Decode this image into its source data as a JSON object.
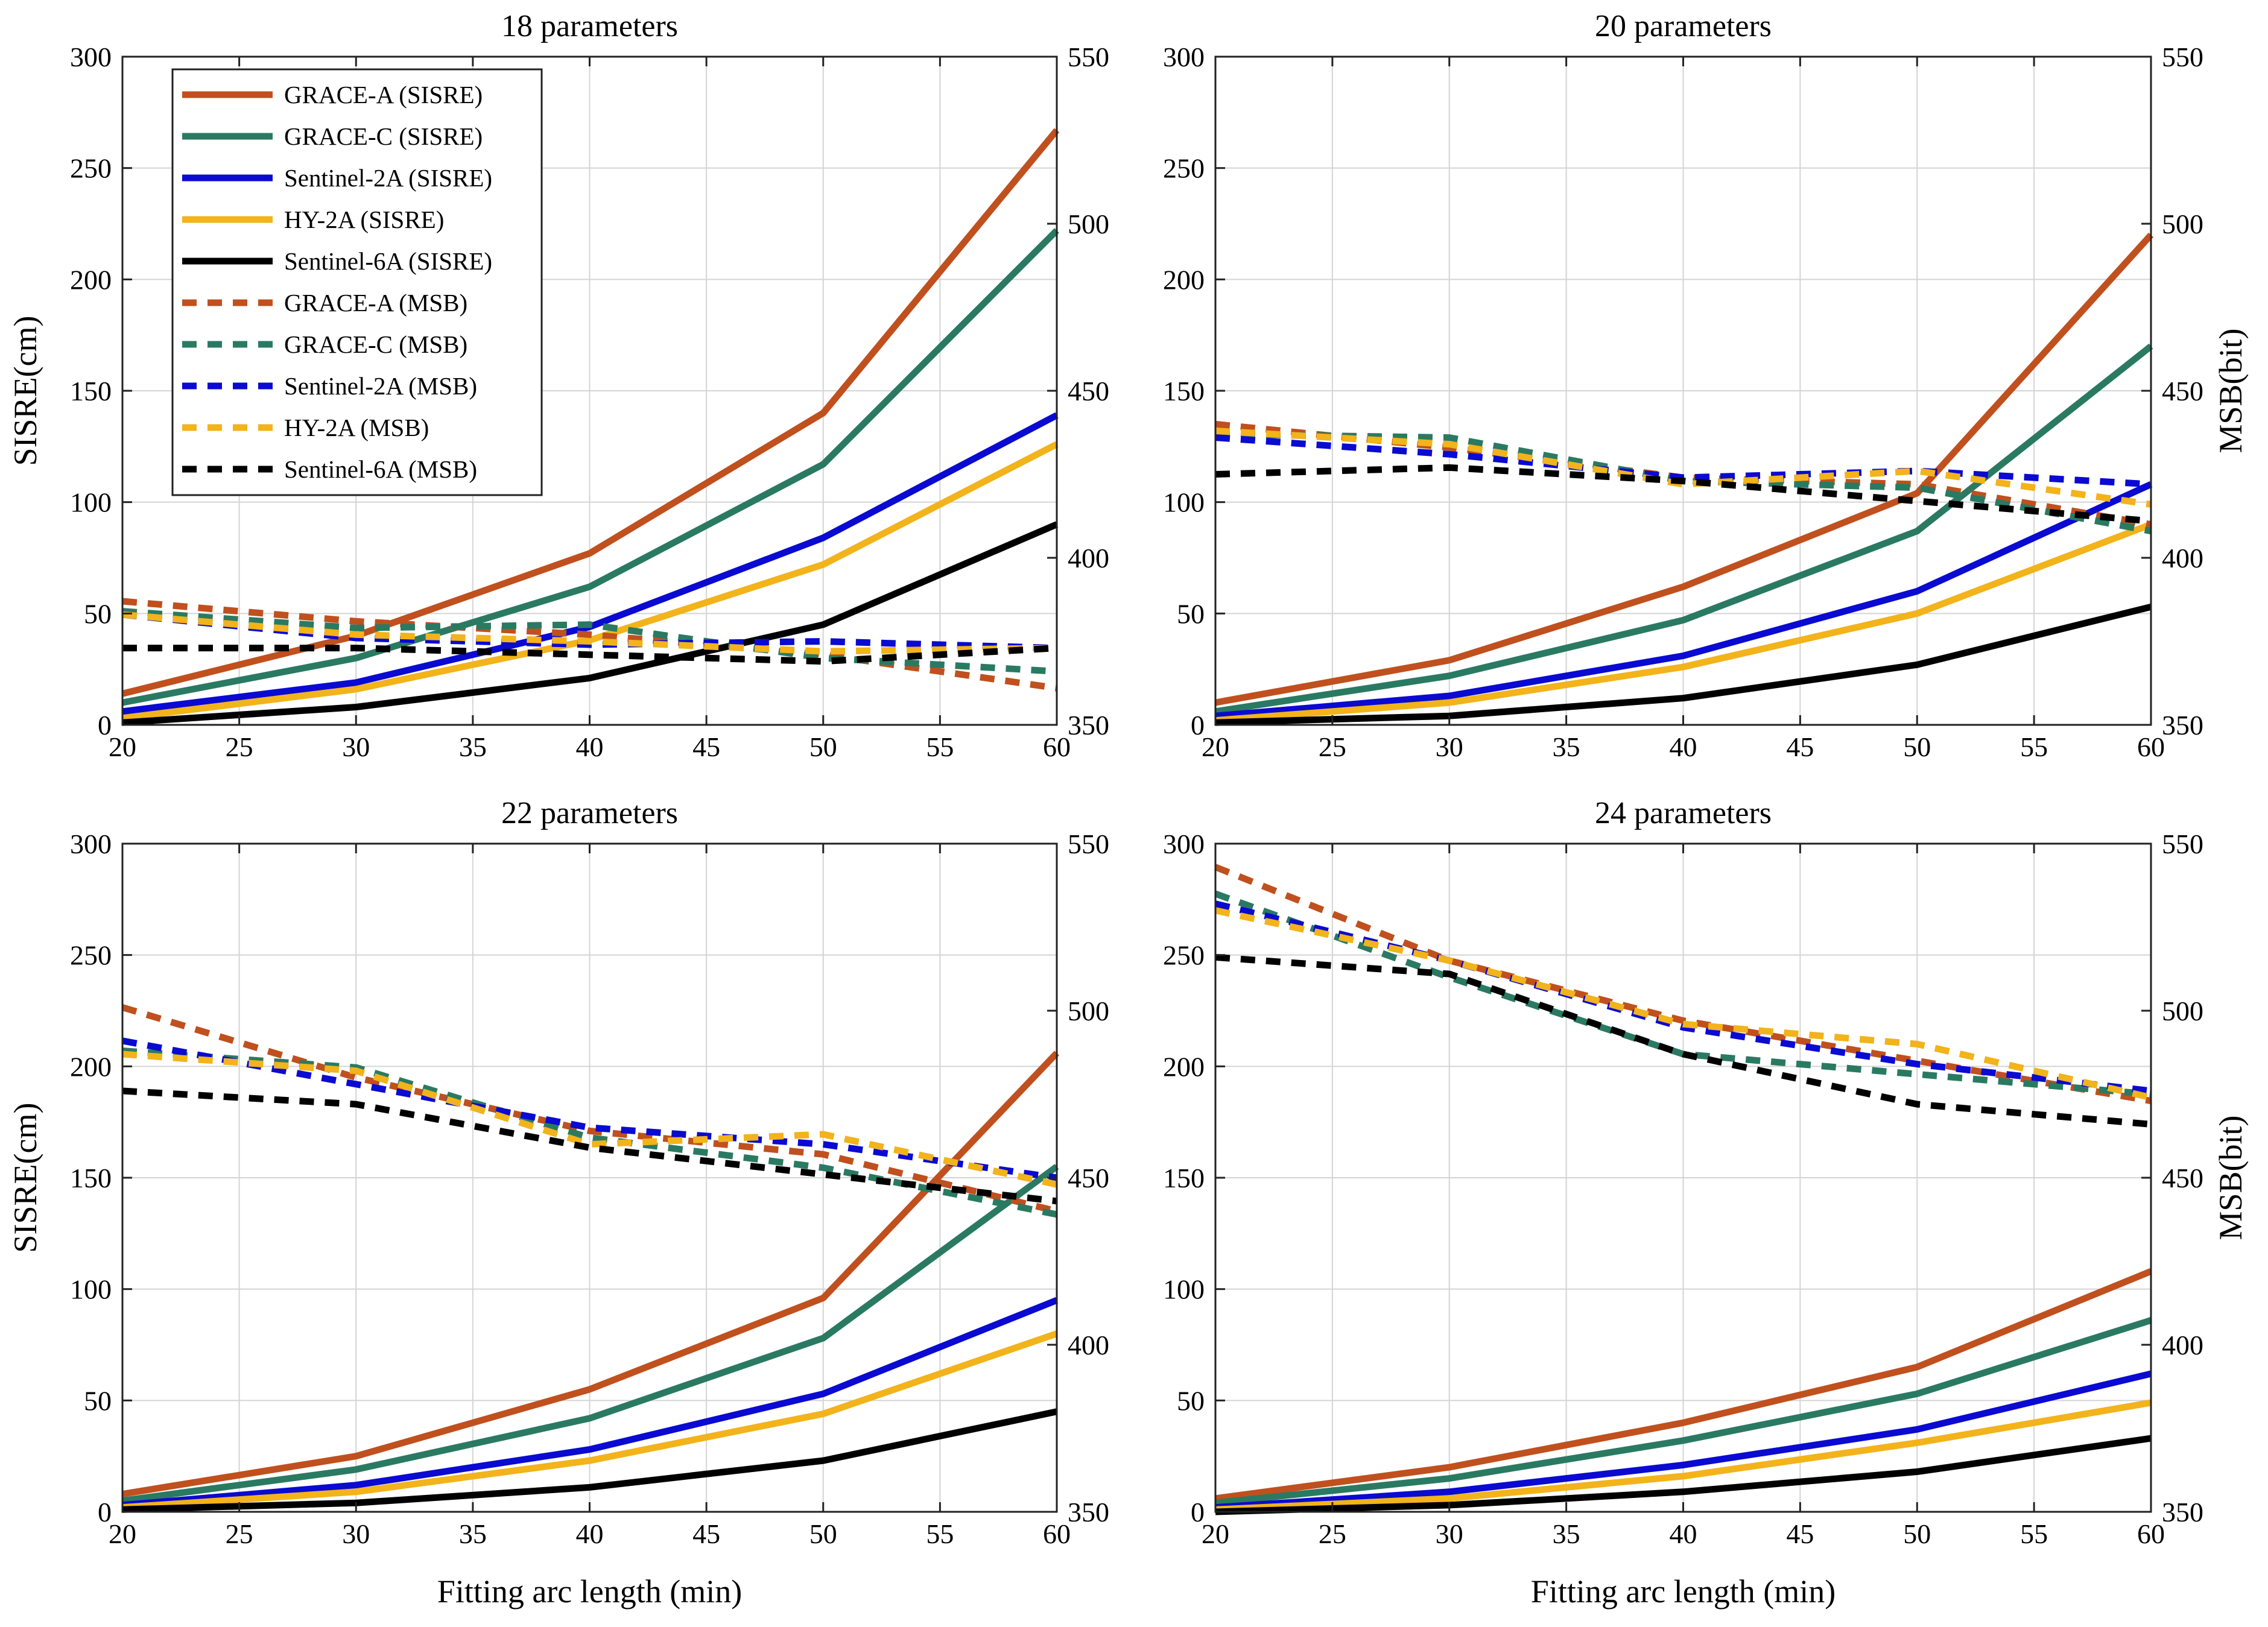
{
  "figure": {
    "x_axis_label": "Fitting arc length (min)",
    "left_axis_label": "SISRE(cm)",
    "right_axis_label": "MSB(bit)"
  },
  "legend": [
    {
      "label": "GRACE-A (SISRE)",
      "color": "#C0501E",
      "dashed": false
    },
    {
      "label": "GRACE-C (SISRE)",
      "color": "#2A7A62",
      "dashed": false
    },
    {
      "label": "Sentinel-2A (SISRE)",
      "color": "#0A0AD2",
      "dashed": false
    },
    {
      "label": "HY-2A (SISRE)",
      "color": "#F2B31B",
      "dashed": false
    },
    {
      "label": "Sentinel-6A (SISRE)",
      "color": "#000000",
      "dashed": false
    },
    {
      "label": "GRACE-A (MSB)",
      "color": "#C0501E",
      "dashed": true
    },
    {
      "label": "GRACE-C (MSB)",
      "color": "#2A7A62",
      "dashed": true
    },
    {
      "label": "Sentinel-2A (MSB)",
      "color": "#0A0AD2",
      "dashed": true
    },
    {
      "label": "HY-2A (MSB)",
      "color": "#F2B31B",
      "dashed": true
    },
    {
      "label": "Sentinel-6A (MSB)",
      "color": "#000000",
      "dashed": true
    }
  ],
  "chart_data": [
    {
      "type": "line",
      "title": "18 parameters",
      "x": [
        20,
        30,
        40,
        50,
        60
      ],
      "xlim": [
        20,
        60
      ],
      "xticks": [
        20,
        25,
        30,
        35,
        40,
        45,
        50,
        55,
        60
      ],
      "ylim_left": [
        0,
        300
      ],
      "yticks_left": [
        0,
        50,
        100,
        150,
        200,
        250,
        300
      ],
      "ylim_right": [
        350,
        550
      ],
      "yticks_right": [
        350,
        400,
        450,
        500,
        550
      ],
      "grid": true,
      "show_legend": true,
      "show_xlabel": false,
      "show_left_ylabel": true,
      "show_right_ylabel": false,
      "series": [
        {
          "name": "GRACE-A (SISRE)",
          "axis": "left",
          "values": [
            14,
            40,
            77,
            140,
            267
          ]
        },
        {
          "name": "GRACE-C (SISRE)",
          "axis": "left",
          "values": [
            10,
            30,
            62,
            117,
            222
          ]
        },
        {
          "name": "Sentinel-2A (SISRE)",
          "axis": "left",
          "values": [
            6,
            19,
            44,
            84,
            139
          ]
        },
        {
          "name": "HY-2A (SISRE)",
          "axis": "left",
          "values": [
            3,
            16,
            38,
            72,
            126
          ]
        },
        {
          "name": "Sentinel-6A (SISRE)",
          "axis": "left",
          "values": [
            1,
            8,
            21,
            45,
            90
          ]
        },
        {
          "name": "GRACE-A (MSB)",
          "axis": "right",
          "values": [
            387,
            381,
            377,
            371,
            361
          ]
        },
        {
          "name": "GRACE-C (MSB)",
          "axis": "right",
          "values": [
            384,
            379,
            380,
            370,
            366
          ]
        },
        {
          "name": "Sentinel-2A (MSB)",
          "axis": "right",
          "values": [
            383,
            376,
            374,
            375,
            373
          ]
        },
        {
          "name": "HY-2A (MSB)",
          "axis": "right",
          "values": [
            383,
            377,
            375,
            372,
            373
          ]
        },
        {
          "name": "Sentinel-6A (MSB)",
          "axis": "right",
          "values": [
            373,
            373,
            371,
            369,
            373
          ]
        }
      ]
    },
    {
      "type": "line",
      "title": "20 parameters",
      "x": [
        20,
        30,
        40,
        50,
        60
      ],
      "xlim": [
        20,
        60
      ],
      "xticks": [
        20,
        25,
        30,
        35,
        40,
        45,
        50,
        55,
        60
      ],
      "ylim_left": [
        0,
        300
      ],
      "yticks_left": [
        0,
        50,
        100,
        150,
        200,
        250,
        300
      ],
      "ylim_right": [
        350,
        550
      ],
      "yticks_right": [
        350,
        400,
        450,
        500,
        550
      ],
      "grid": true,
      "show_legend": false,
      "show_xlabel": false,
      "show_left_ylabel": false,
      "show_right_ylabel": true,
      "series": [
        {
          "name": "GRACE-A (SISRE)",
          "axis": "left",
          "values": [
            10,
            29,
            62,
            104,
            220
          ]
        },
        {
          "name": "GRACE-C (SISRE)",
          "axis": "left",
          "values": [
            6,
            22,
            47,
            87,
            170
          ]
        },
        {
          "name": "Sentinel-2A (SISRE)",
          "axis": "left",
          "values": [
            4,
            13,
            31,
            60,
            108
          ]
        },
        {
          "name": "HY-2A (SISRE)",
          "axis": "left",
          "values": [
            2,
            10,
            26,
            50,
            90
          ]
        },
        {
          "name": "Sentinel-6A (SISRE)",
          "axis": "left",
          "values": [
            1,
            4,
            12,
            27,
            53
          ]
        },
        {
          "name": "GRACE-A (MSB)",
          "axis": "right",
          "values": [
            440,
            433,
            424,
            422,
            410
          ]
        },
        {
          "name": "GRACE-C (MSB)",
          "axis": "right",
          "values": [
            437,
            436,
            423,
            421,
            408
          ]
        },
        {
          "name": "Sentinel-2A (MSB)",
          "axis": "right",
          "values": [
            436,
            431,
            424,
            426,
            422
          ]
        },
        {
          "name": "HY-2A (MSB)",
          "axis": "right",
          "values": [
            438,
            434,
            422,
            426,
            416
          ]
        },
        {
          "name": "Sentinel-6A (MSB)",
          "axis": "right",
          "values": [
            425,
            427,
            423,
            417,
            411
          ]
        }
      ]
    },
    {
      "type": "line",
      "title": "22 parameters",
      "x": [
        20,
        30,
        40,
        50,
        60
      ],
      "xlim": [
        20,
        60
      ],
      "xticks": [
        20,
        25,
        30,
        35,
        40,
        45,
        50,
        55,
        60
      ],
      "ylim_left": [
        0,
        300
      ],
      "yticks_left": [
        0,
        50,
        100,
        150,
        200,
        250,
        300
      ],
      "ylim_right": [
        350,
        550
      ],
      "yticks_right": [
        350,
        400,
        450,
        500,
        550
      ],
      "grid": true,
      "show_legend": false,
      "show_xlabel": true,
      "show_left_ylabel": true,
      "show_right_ylabel": false,
      "series": [
        {
          "name": "GRACE-A (SISRE)",
          "axis": "left",
          "values": [
            8,
            25,
            55,
            96,
            206
          ]
        },
        {
          "name": "GRACE-C (SISRE)",
          "axis": "left",
          "values": [
            5,
            19,
            42,
            78,
            155
          ]
        },
        {
          "name": "Sentinel-2A (SISRE)",
          "axis": "left",
          "values": [
            3,
            12,
            28,
            53,
            95
          ]
        },
        {
          "name": "HY-2A (SISRE)",
          "axis": "left",
          "values": [
            2,
            9,
            23,
            44,
            80
          ]
        },
        {
          "name": "Sentinel-6A (SISRE)",
          "axis": "left",
          "values": [
            1,
            4,
            11,
            23,
            45
          ]
        },
        {
          "name": "GRACE-A (MSB)",
          "axis": "right",
          "values": [
            501,
            480,
            464,
            457,
            440
          ]
        },
        {
          "name": "GRACE-C (MSB)",
          "axis": "right",
          "values": [
            488,
            483,
            462,
            453,
            439
          ]
        },
        {
          "name": "Sentinel-2A (MSB)",
          "axis": "right",
          "values": [
            491,
            478,
            465,
            460,
            450
          ]
        },
        {
          "name": "HY-2A (MSB)",
          "axis": "right",
          "values": [
            487,
            482,
            460,
            463,
            448
          ]
        },
        {
          "name": "Sentinel-6A (MSB)",
          "axis": "right",
          "values": [
            476,
            472,
            459,
            451,
            443
          ]
        }
      ]
    },
    {
      "type": "line",
      "title": "24 parameters",
      "x": [
        20,
        30,
        40,
        50,
        60
      ],
      "xlim": [
        20,
        60
      ],
      "xticks": [
        20,
        25,
        30,
        35,
        40,
        45,
        50,
        55,
        60
      ],
      "ylim_left": [
        0,
        300
      ],
      "yticks_left": [
        0,
        50,
        100,
        150,
        200,
        250,
        300
      ],
      "ylim_right": [
        350,
        550
      ],
      "yticks_right": [
        350,
        400,
        450,
        500,
        550
      ],
      "grid": true,
      "show_legend": false,
      "show_xlabel": true,
      "show_left_ylabel": false,
      "show_right_ylabel": true,
      "series": [
        {
          "name": "GRACE-A (SISRE)",
          "axis": "left",
          "values": [
            6,
            20,
            40,
            65,
            108
          ]
        },
        {
          "name": "GRACE-C (SISRE)",
          "axis": "left",
          "values": [
            4,
            15,
            32,
            53,
            86
          ]
        },
        {
          "name": "Sentinel-2A (SISRE)",
          "axis": "left",
          "values": [
            2,
            9,
            21,
            37,
            62
          ]
        },
        {
          "name": "HY-2A (SISRE)",
          "axis": "left",
          "values": [
            1,
            6,
            16,
            31,
            49
          ]
        },
        {
          "name": "Sentinel-6A (SISRE)",
          "axis": "left",
          "values": [
            0,
            3,
            9,
            18,
            33
          ]
        },
        {
          "name": "GRACE-A (MSB)",
          "axis": "right",
          "values": [
            543,
            515,
            497,
            485,
            473
          ]
        },
        {
          "name": "GRACE-C (MSB)",
          "axis": "right",
          "values": [
            535,
            510,
            487,
            481,
            475
          ]
        },
        {
          "name": "Sentinel-2A (MSB)",
          "axis": "right",
          "values": [
            532,
            515,
            495,
            484,
            476
          ]
        },
        {
          "name": "HY-2A (MSB)",
          "axis": "right",
          "values": [
            530,
            515,
            496,
            490,
            474
          ]
        },
        {
          "name": "Sentinel-6A (MSB)",
          "axis": "right",
          "values": [
            516,
            511,
            487,
            472,
            466
          ]
        }
      ]
    }
  ]
}
